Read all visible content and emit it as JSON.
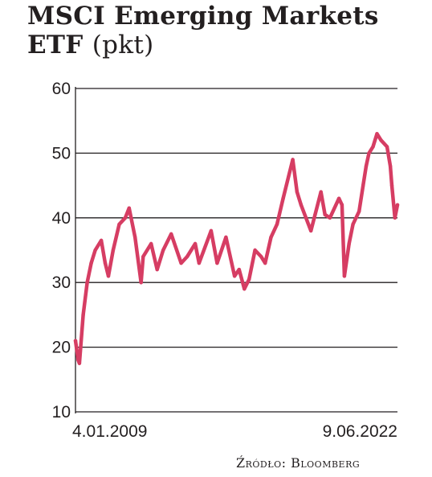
{
  "title": {
    "line1": "MSCI Emerging Markets",
    "line2": "ETF",
    "unit": "(pkt)"
  },
  "source": "Źródło: Bloomberg",
  "colors": {
    "line": "#d63d63",
    "grid": "#231f20",
    "text": "#231f20"
  },
  "chart_data": {
    "type": "line",
    "title": "MSCI Emerging Markets ETF (pkt)",
    "xlabel": "",
    "ylabel": "",
    "x_start_label": "4.01.2009",
    "x_end_label": "9.06.2022",
    "xlim": [
      "2009-01-04",
      "2022-06-09"
    ],
    "ylim": [
      10,
      60
    ],
    "yticks": [
      10,
      20,
      30,
      40,
      50,
      60
    ],
    "grid": "horizontal",
    "series": [
      {
        "x": [
          "2009-01-04",
          "2009-02-15",
          "2009-03-05",
          "2009-05-01",
          "2009-07-01",
          "2009-09-01",
          "2009-11-01",
          "2010-02-01",
          "2010-04-01",
          "2010-05-20",
          "2010-08-01",
          "2010-11-01",
          "2011-02-01",
          "2011-04-01",
          "2011-07-01",
          "2011-09-30",
          "2011-11-01",
          "2012-03-01",
          "2012-06-01",
          "2012-09-01",
          "2013-01-01",
          "2013-06-01",
          "2013-09-01",
          "2014-01-01",
          "2014-03-01",
          "2014-09-01",
          "2014-12-01",
          "2015-04-15",
          "2015-08-24",
          "2015-11-01",
          "2016-01-20",
          "2016-04-01",
          "2016-07-01",
          "2016-10-01",
          "2016-12-01",
          "2017-03-01",
          "2017-06-01",
          "2017-09-01",
          "2018-01-26",
          "2018-04-01",
          "2018-06-01",
          "2018-10-30",
          "2019-01-01",
          "2019-04-01",
          "2019-06-01",
          "2019-08-15",
          "2019-12-31",
          "2020-02-15",
          "2020-03-23",
          "2020-06-01",
          "2020-08-01",
          "2020-11-01",
          "2021-01-01",
          "2021-02-17",
          "2021-04-01",
          "2021-06-01",
          "2021-08-01",
          "2021-10-01",
          "2022-01-01",
          "2022-02-20",
          "2022-03-15",
          "2022-05-01",
          "2022-06-09"
        ],
        "values": [
          21,
          18,
          17.5,
          25,
          30,
          33,
          35,
          36.5,
          33,
          31,
          35,
          39,
          40,
          41.5,
          37,
          30,
          34,
          36,
          32,
          35,
          37.5,
          33,
          34,
          36,
          33,
          38,
          33,
          37,
          31,
          32,
          29,
          30.5,
          35,
          34,
          33,
          37,
          39,
          43,
          49,
          44,
          42,
          38,
          40.5,
          44,
          40.5,
          40,
          43,
          42,
          31,
          36,
          39,
          41,
          45,
          48,
          50,
          51,
          53,
          52,
          51,
          48,
          45,
          40,
          42
        ]
      }
    ]
  }
}
